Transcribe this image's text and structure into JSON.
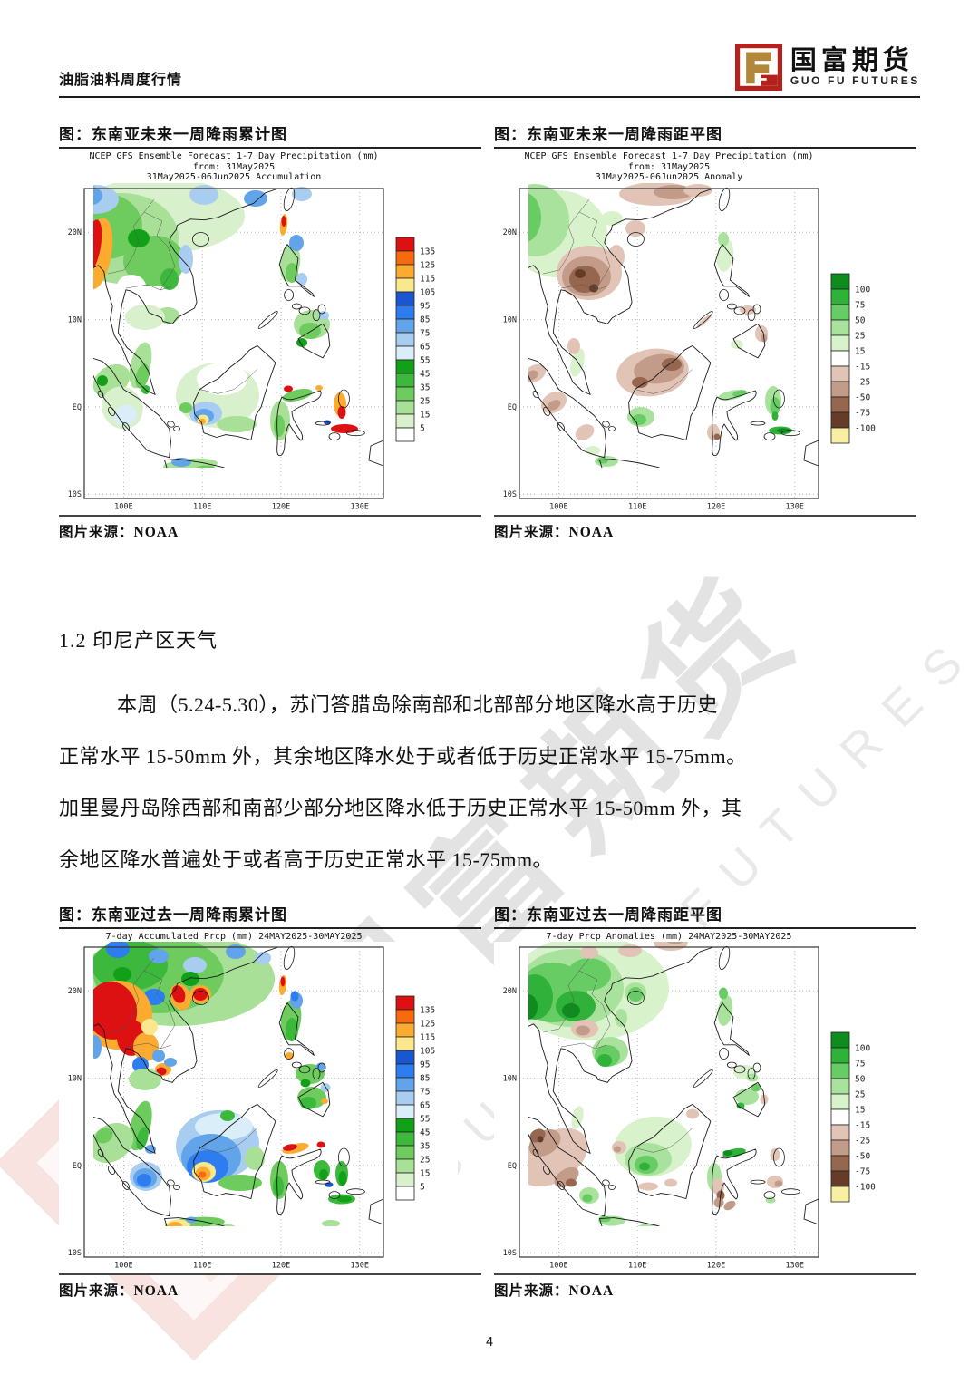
{
  "header": {
    "doc_title": "油脂油料周度行情",
    "brand_cn": "国富期货",
    "brand_en": "GUO FU FUTURES"
  },
  "watermark": {
    "cn": "国富期货",
    "en": "GUO FU FUTURES"
  },
  "section": {
    "heading": "1.2 印尼产区天气",
    "paragraph_lines": [
      "本周（5.24-5.30），苏门答腊岛除南部和北部部分地区降水高于历史",
      "正常水平 15-50mm 外，其余地区降水处于或者低于历史正常水平 15-75mm。",
      "加里曼丹岛除西部和南部少部分地区降水低于历史正常水平 15-50mm 外，其",
      "余地区降水普遍处于或者高于历史正常水平 15-75mm。"
    ]
  },
  "map_axes": {
    "x_ticks": [
      "100E",
      "110E",
      "120E",
      "130E"
    ],
    "y_ticks": [
      "20N",
      "10N",
      "EQ",
      "10S"
    ]
  },
  "colorbars": {
    "accumulation": {
      "labels": [
        "135",
        "125",
        "115",
        "105",
        "95",
        "85",
        "75",
        "65",
        "55",
        "45",
        "35",
        "25",
        "15",
        "5"
      ],
      "cell_colors": [
        "#dd1111",
        "#f96a10",
        "#fbab30",
        "#fbe88e",
        "#1a56d0",
        "#2e7df0",
        "#62a4ea",
        "#a8cdf0",
        "#d9eef8",
        "#12a019",
        "#3cb83c",
        "#6ecc5e",
        "#a8e098",
        "#d8f0cc",
        "#ffffff"
      ]
    },
    "anomaly": {
      "labels": [
        "100",
        "75",
        "50",
        "25",
        "15",
        "-15",
        "-25",
        "-50",
        "-75",
        "-100"
      ],
      "cell_colors": [
        "#0e8c1e",
        "#30b23a",
        "#68cc64",
        "#a8e29c",
        "#d8f2cc",
        "#ffffff",
        "#e2c4b6",
        "#c29c88",
        "#96664e",
        "#643c28",
        "#f8f0a0"
      ]
    }
  },
  "figures": [
    {
      "caption": "图：东南亚未来一周降雨累计图",
      "map_title_lines": [
        "NCEP GFS Ensemble Forecast 1-7 Day Precipitation (mm)",
        "from: 31May2025",
        "31May2025-06Jun2025 Accumulation"
      ],
      "source": "图片来源：NOAA",
      "colorbar": "accumulation"
    },
    {
      "caption": "图：东南亚未来一周降雨距平图",
      "map_title_lines": [
        "NCEP GFS Ensemble Forecast 1-7 Day Precipitation (mm)",
        "from: 31May2025",
        "31May2025-06Jun2025 Anomaly"
      ],
      "source": "图片来源：NOAA",
      "colorbar": "anomaly"
    },
    {
      "caption": "图：东南亚过去一周降雨累计图",
      "map_title_lines": [
        "7-day Accumulated Prcp (mm) 24MAY2025-30MAY2025"
      ],
      "source": "图片来源：NOAA",
      "colorbar": "accumulation"
    },
    {
      "caption": "图：东南亚过去一周降雨距平图",
      "map_title_lines": [
        "7-day Prcp Anomalies (mm) 24MAY2025-30MAY2025"
      ],
      "source": "图片来源：NOAA",
      "colorbar": "anomaly"
    }
  ],
  "page": {
    "number": "4"
  }
}
